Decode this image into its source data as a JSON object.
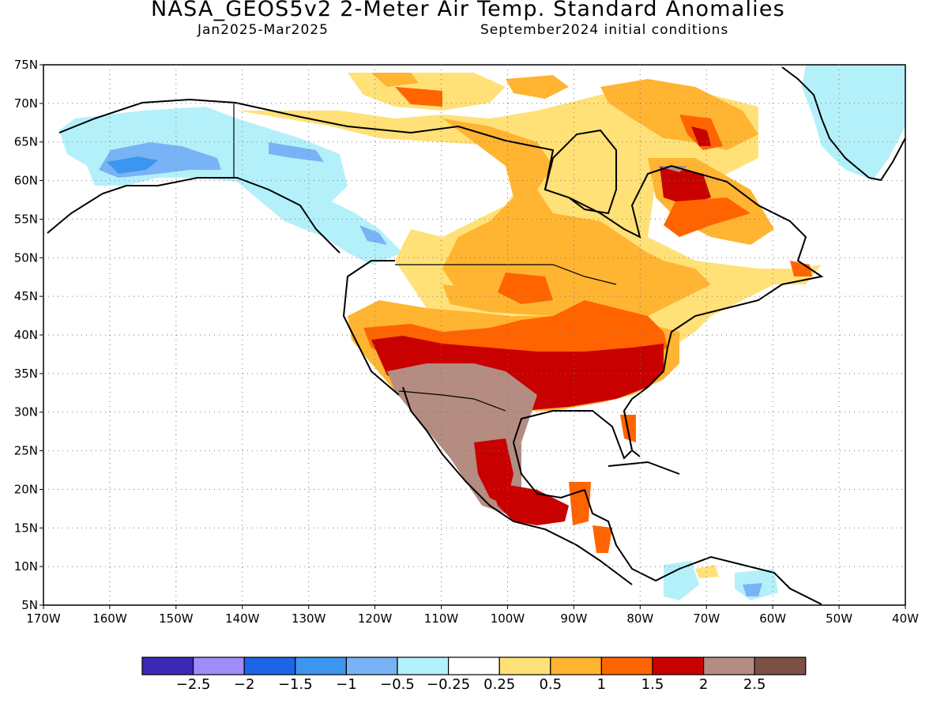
{
  "header": {
    "title": "NASA_GEOS5v2 2-Meter Air Temp. Standard Anomalies",
    "period": "Jan2025-Mar2025",
    "initial_conditions": "September2024 initial conditions"
  },
  "axes": {
    "lat_labels": [
      "75N",
      "70N",
      "65N",
      "60N",
      "55N",
      "50N",
      "45N",
      "40N",
      "35N",
      "30N",
      "25N",
      "20N",
      "15N",
      "10N",
      "5N"
    ],
    "lon_labels": [
      "170W",
      "160W",
      "150W",
      "140W",
      "130W",
      "120W",
      "110W",
      "100W",
      "90W",
      "80W",
      "70W",
      "60W",
      "50W",
      "40W"
    ],
    "lat_range": [
      5,
      75
    ],
    "lon_range": [
      -170,
      -40
    ],
    "gridlines": "dotted"
  },
  "colorbar": {
    "colors": [
      "#3c28b4",
      "#a08cff",
      "#1e64e6",
      "#3c96f0",
      "#78b4f5",
      "#b4f0fa",
      "#ffffff",
      "#ffe178",
      "#ffb432",
      "#ff6400",
      "#c80000",
      "#b48c82",
      "#7d5046"
    ],
    "labels": [
      "-2.5",
      "-2",
      "-1.5",
      "-1",
      "-0.5",
      "-0.25",
      "0.25",
      "0.5",
      "1",
      "1.5",
      "2",
      "2.5"
    ]
  },
  "colors": {
    "ocean": "#ffffff",
    "coastline": "#000000",
    "greenland_ice": "#b4f0fa"
  }
}
